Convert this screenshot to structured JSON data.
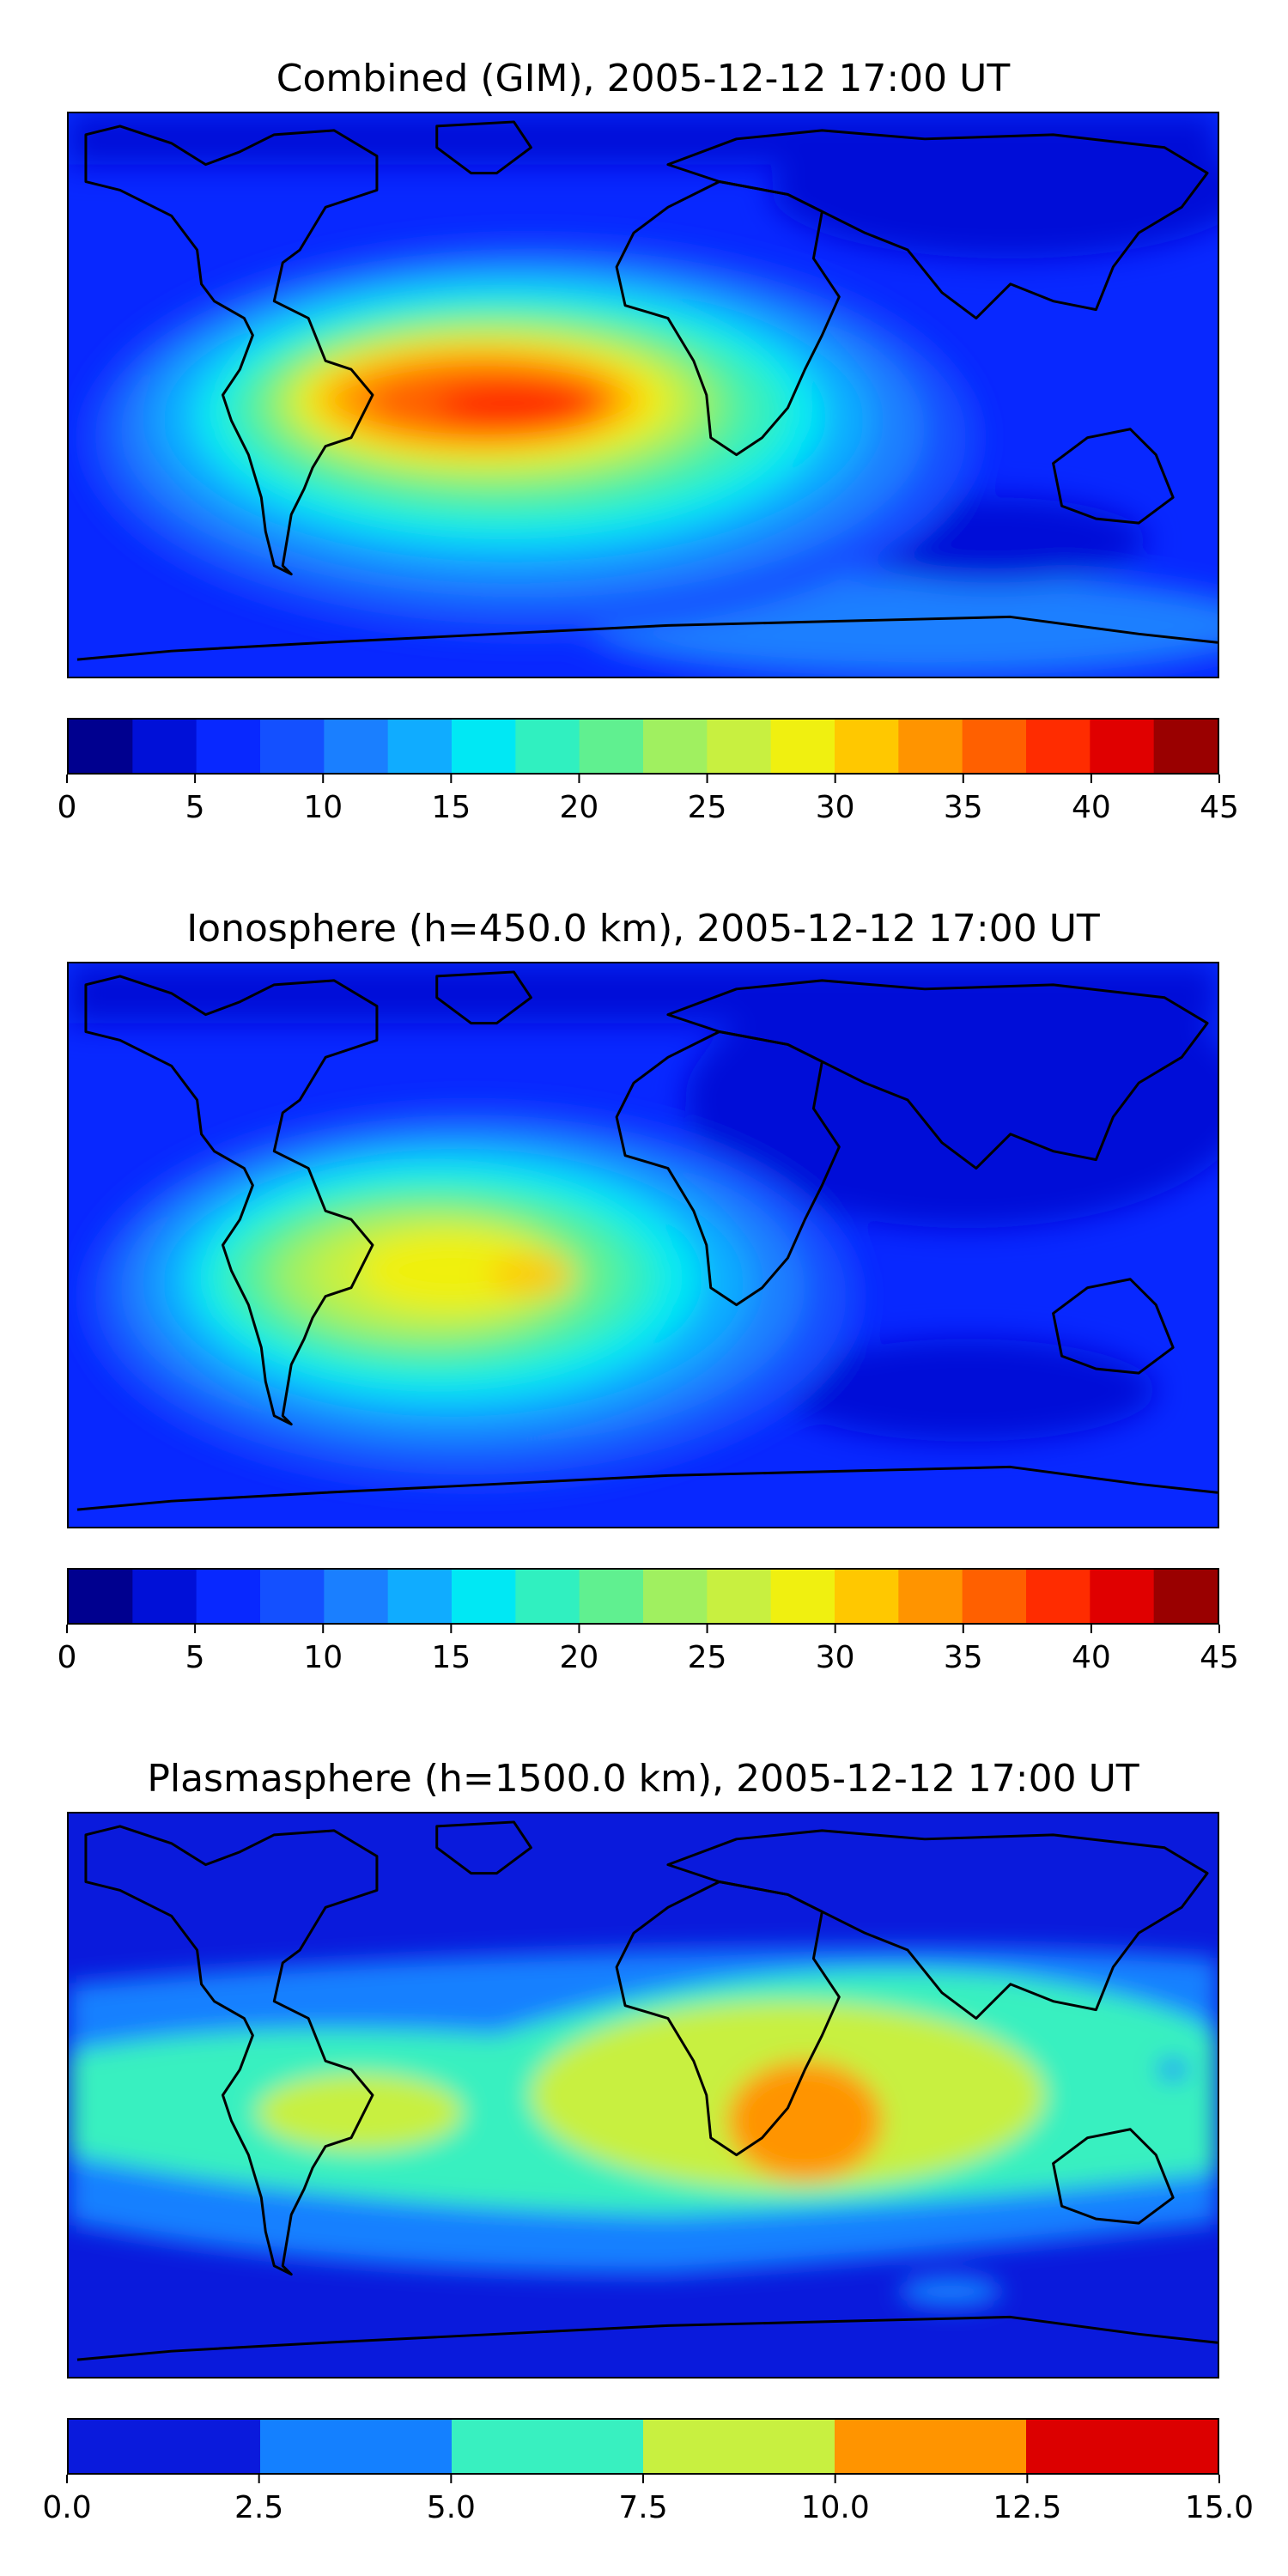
{
  "chart_data": [
    {
      "type": "heatmap",
      "title": "Combined (GIM), 2005-12-12 17:00 UT",
      "colorbar": {
        "levels": [
          0,
          2.5,
          5,
          7.5,
          10,
          12.5,
          15,
          17.5,
          20,
          22.5,
          25,
          27.5,
          30,
          32.5,
          35,
          37.5,
          40,
          42.5,
          45
        ],
        "tick_labels": [
          "0",
          "5",
          "10",
          "15",
          "20",
          "25",
          "30",
          "35",
          "40",
          "45"
        ],
        "tick_values": [
          0,
          5,
          10,
          15,
          20,
          25,
          30,
          35,
          40,
          45
        ],
        "colors": [
          "#00008f",
          "#0010d8",
          "#0828ff",
          "#1450ff",
          "#1a7fff",
          "#10acff",
          "#00e8f4",
          "#30f0c0",
          "#60f090",
          "#a0f060",
          "#c8f040",
          "#f0f010",
          "#ffc800",
          "#ff9400",
          "#ff6000",
          "#ff2c00",
          "#e00000",
          "#9a0000"
        ]
      },
      "grid": false,
      "legend": "bottom-colorbar"
    },
    {
      "type": "heatmap",
      "title": "Ionosphere  (h=450.0 km), 2005-12-12 17:00 UT",
      "colorbar": {
        "levels": [
          0,
          2.5,
          5,
          7.5,
          10,
          12.5,
          15,
          17.5,
          20,
          22.5,
          25,
          27.5,
          30,
          32.5,
          35,
          37.5,
          40,
          42.5,
          45
        ],
        "tick_labels": [
          "0",
          "5",
          "10",
          "15",
          "20",
          "25",
          "30",
          "35",
          "40",
          "45"
        ],
        "tick_values": [
          0,
          5,
          10,
          15,
          20,
          25,
          30,
          35,
          40,
          45
        ],
        "colors": [
          "#00008f",
          "#0010d8",
          "#0828ff",
          "#1450ff",
          "#1a7fff",
          "#10acff",
          "#00e8f4",
          "#30f0c0",
          "#60f090",
          "#a0f060",
          "#c8f040",
          "#f0f010",
          "#ffc800",
          "#ff9400",
          "#ff6000",
          "#ff2c00",
          "#e00000",
          "#9a0000"
        ]
      },
      "grid": false,
      "legend": "bottom-colorbar"
    },
    {
      "type": "heatmap",
      "title": "Plasmasphere (h=1500.0 km), 2005-12-12 17:00 UT",
      "colorbar": {
        "levels": [
          0.0,
          2.5,
          5.0,
          7.5,
          10.0,
          12.5,
          15.0
        ],
        "tick_labels": [
          "0.0",
          "2.5",
          "5.0",
          "7.5",
          "10.0",
          "12.5",
          "15.0"
        ],
        "tick_values": [
          0.0,
          2.5,
          5.0,
          7.5,
          10.0,
          12.5,
          15.0
        ],
        "colors": [
          "#0a1adc",
          "#1480ff",
          "#38f0c0",
          "#c8f040",
          "#ff9400",
          "#dc0000"
        ]
      },
      "grid": false,
      "legend": "bottom-colorbar"
    }
  ]
}
